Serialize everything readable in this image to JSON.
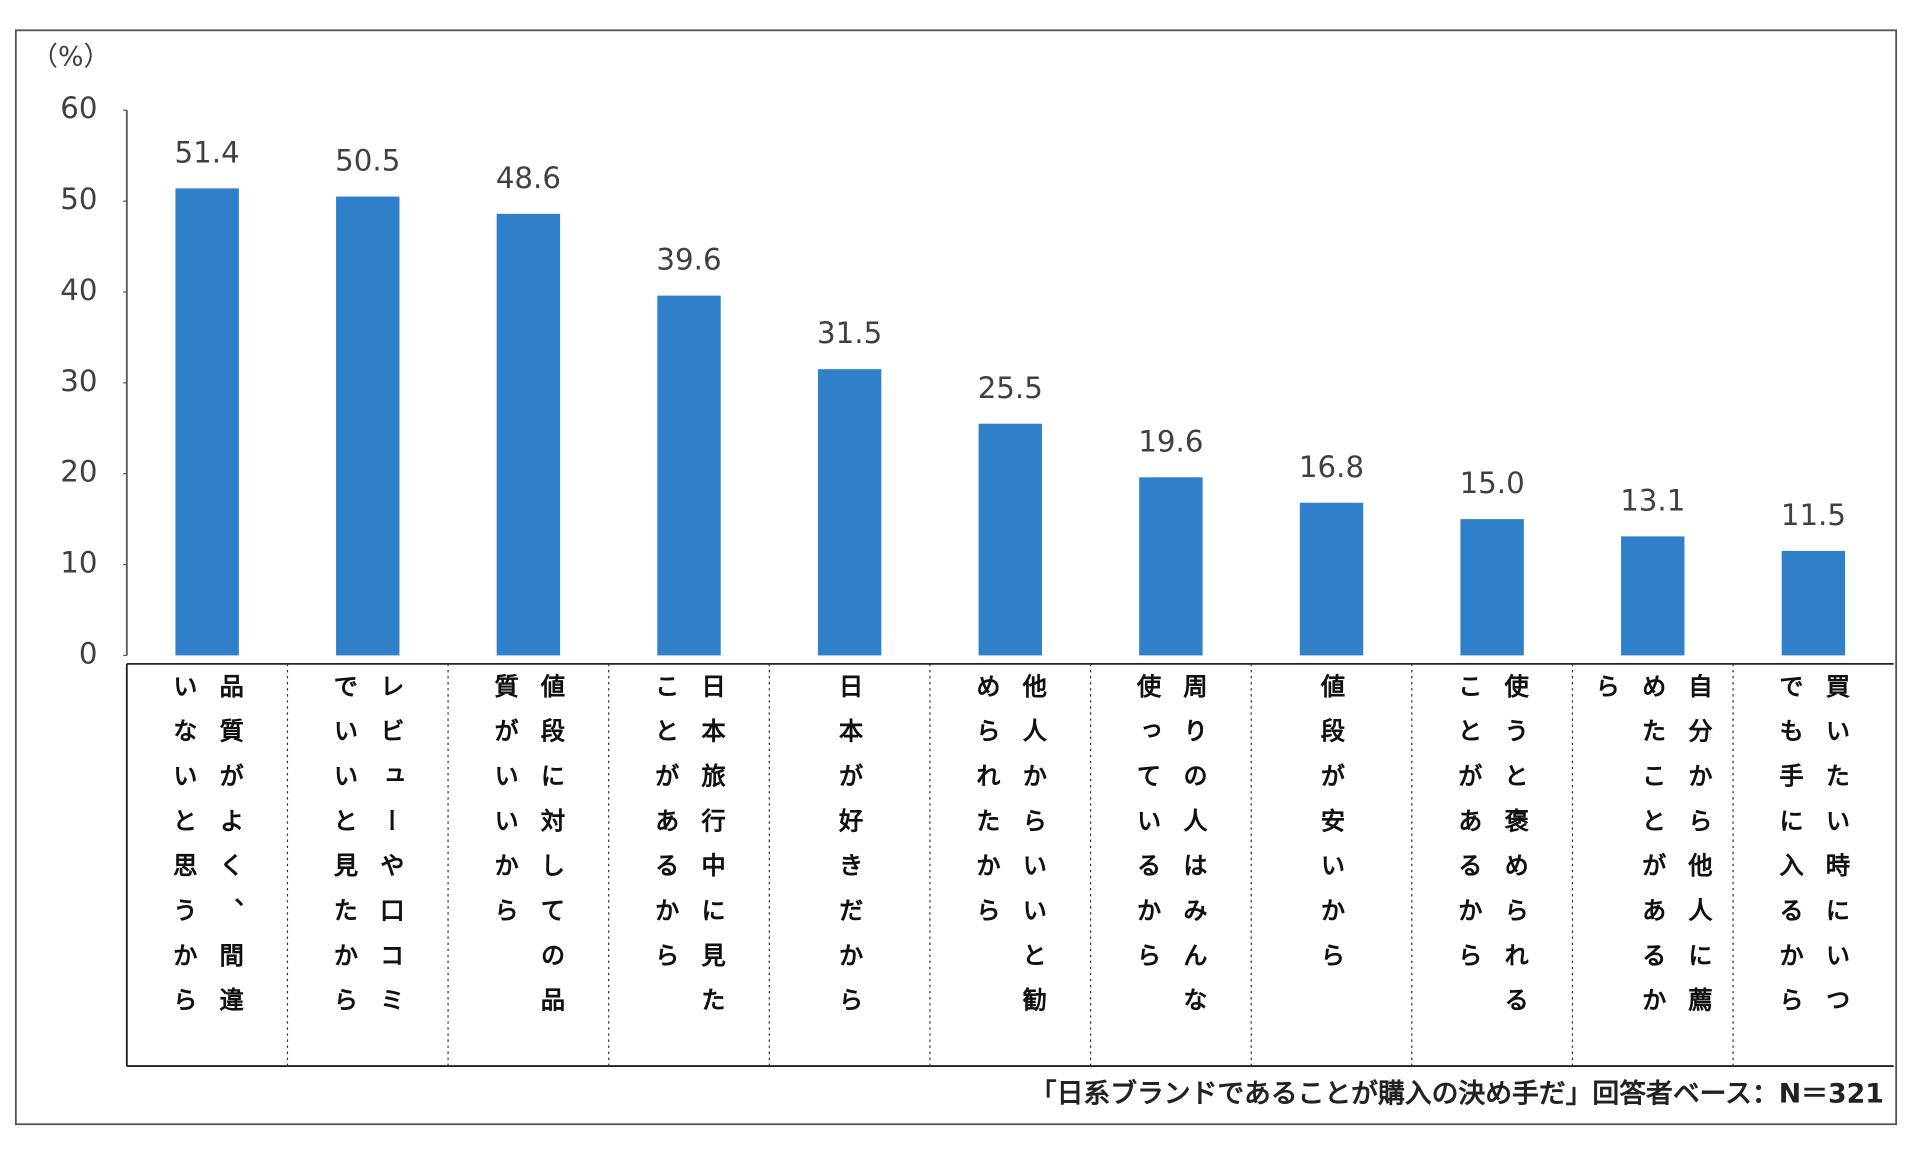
{
  "chart_data": {
    "type": "bar",
    "y_unit": "（%）",
    "categories": [
      "品質がよく、間違いないと思うから",
      "レビューや口コミでいいと見たから",
      "値段に対しての品質がいいから",
      "日本旅行中に見たことがあるから",
      "日本が好きだから",
      "他人からいいと勧められたから",
      "周りの人はみんな使っているから",
      "値段が安いから",
      "使うと褒められることがあるから",
      "自分から他人に薦めたことがあるから",
      "買いたい時にいつでも手に入るから"
    ],
    "values": [
      51.4,
      50.5,
      48.6,
      39.6,
      31.5,
      25.5,
      19.6,
      16.8,
      15.0,
      13.1,
      11.5
    ],
    "value_labels": [
      "51.4",
      "50.5",
      "48.6",
      "39.6",
      "31.5",
      "25.5",
      "19.6",
      "16.8",
      "15.0",
      "13.1",
      "11.5"
    ],
    "color": "#2f80c8",
    "ylim": [
      0,
      60
    ],
    "yticks": [
      0,
      10,
      20,
      30,
      40,
      50,
      60
    ],
    "note": "「日系ブランドであることが購入の決め手だ」回答者ベース：N＝321"
  }
}
